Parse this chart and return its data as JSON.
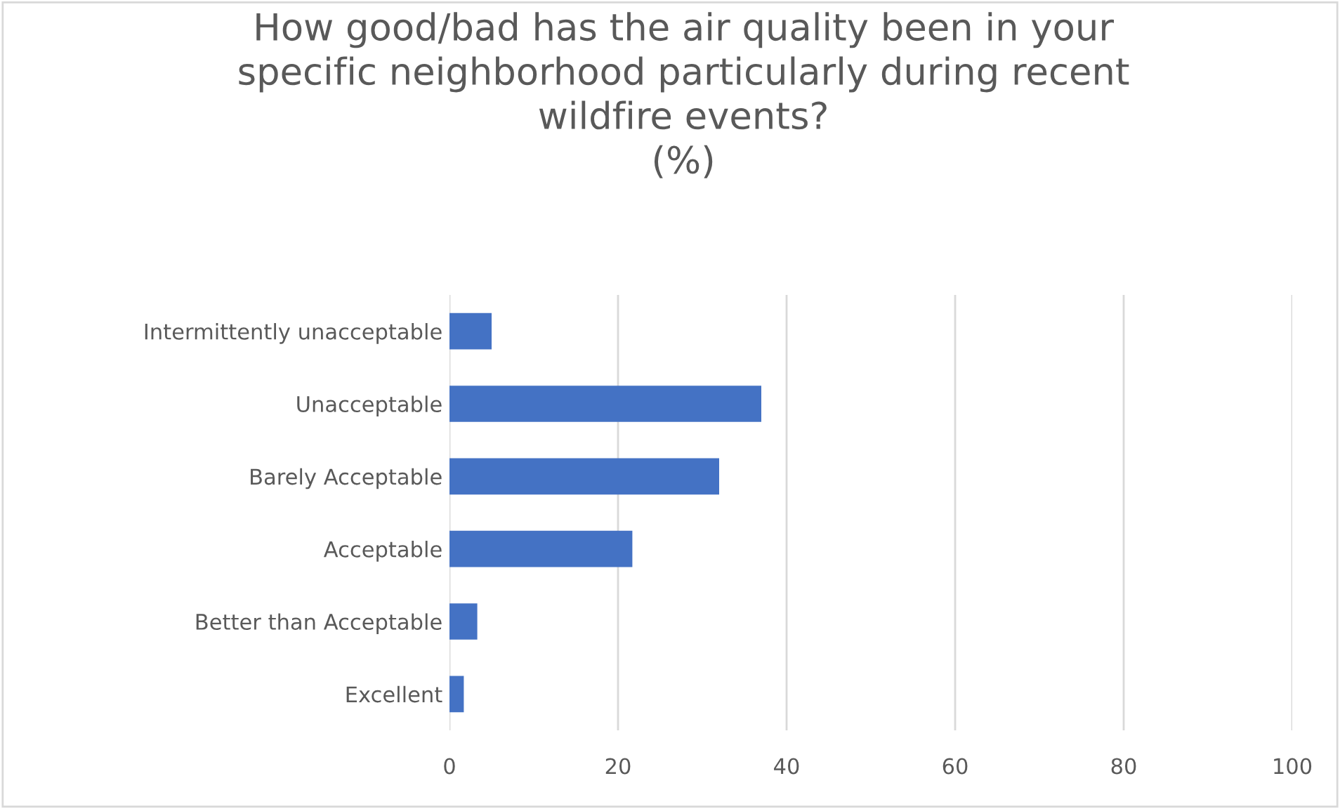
{
  "chart_data": {
    "type": "bar",
    "orientation": "horizontal",
    "title": "How good/bad has the air quality been in your\nspecific neighborhood particularly during recent\nwildfire events?\n(%)",
    "categories": [
      "Intermittently unacceptable",
      "Unacceptable",
      "Barely Acceptable",
      "Acceptable",
      "Better than Acceptable",
      "Excellent"
    ],
    "values": [
      5,
      37,
      32,
      21.7,
      3.3,
      1.7
    ],
    "color": "#4472c4",
    "xlim": [
      0,
      100
    ],
    "xticks": [
      0,
      20,
      40,
      60,
      80,
      100
    ],
    "grid": "x",
    "legend": false
  }
}
